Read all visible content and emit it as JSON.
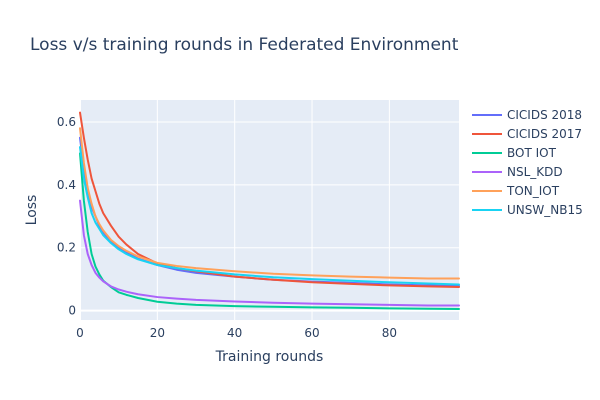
{
  "chart_data": {
    "type": "line",
    "title": "Loss v/s training rounds in Federated Environment",
    "xlabel": "Training rounds",
    "ylabel": "Loss",
    "xlim": [
      0,
      98
    ],
    "ylim": [
      -0.03,
      0.67
    ],
    "x_ticks": [
      0,
      20,
      40,
      60,
      80
    ],
    "y_ticks": [
      0,
      0.2,
      0.4,
      0.6
    ],
    "x_tick_labels": [
      "0",
      "20",
      "40",
      "60",
      "80"
    ],
    "y_tick_labels": [
      "0",
      "0.2",
      "0.4",
      "0.6"
    ],
    "grid": true,
    "legend_position": "right",
    "plot_background": "#e5ecf6",
    "series": [
      {
        "name": "CICIDS 2018",
        "color": "#636efa",
        "x": [
          0,
          1,
          2,
          3,
          4,
          5,
          6,
          8,
          10,
          12,
          15,
          20,
          25,
          30,
          40,
          50,
          60,
          70,
          80,
          90,
          98
        ],
        "y": [
          0.55,
          0.45,
          0.38,
          0.33,
          0.3,
          0.27,
          0.25,
          0.22,
          0.2,
          0.185,
          0.165,
          0.145,
          0.13,
          0.12,
          0.108,
          0.098,
          0.092,
          0.088,
          0.083,
          0.08,
          0.078
        ]
      },
      {
        "name": "CICIDS 2017",
        "color": "#ef553b",
        "x": [
          0,
          1,
          2,
          3,
          4,
          5,
          6,
          8,
          10,
          12,
          15,
          20,
          25,
          30,
          40,
          50,
          60,
          70,
          80,
          90,
          98
        ],
        "y": [
          0.63,
          0.55,
          0.48,
          0.42,
          0.38,
          0.34,
          0.31,
          0.27,
          0.235,
          0.21,
          0.18,
          0.15,
          0.135,
          0.125,
          0.108,
          0.098,
          0.09,
          0.085,
          0.08,
          0.077,
          0.075
        ]
      },
      {
        "name": "BOT IOT",
        "color": "#00cc96",
        "x": [
          0,
          1,
          2,
          3,
          4,
          5,
          6,
          8,
          10,
          12,
          15,
          20,
          25,
          30,
          40,
          50,
          60,
          70,
          80,
          90,
          98
        ],
        "y": [
          0.5,
          0.35,
          0.25,
          0.18,
          0.14,
          0.115,
          0.095,
          0.075,
          0.058,
          0.05,
          0.04,
          0.028,
          0.022,
          0.018,
          0.014,
          0.012,
          0.01,
          0.009,
          0.007,
          0.006,
          0.005
        ]
      },
      {
        "name": "NSL_KDD",
        "color": "#ab63fa",
        "x": [
          0,
          1,
          2,
          3,
          4,
          5,
          6,
          8,
          10,
          12,
          15,
          20,
          25,
          30,
          40,
          50,
          60,
          70,
          80,
          90,
          98
        ],
        "y": [
          0.35,
          0.24,
          0.18,
          0.145,
          0.12,
          0.105,
          0.093,
          0.077,
          0.067,
          0.06,
          0.052,
          0.043,
          0.038,
          0.034,
          0.029,
          0.025,
          0.022,
          0.02,
          0.018,
          0.016,
          0.016
        ]
      },
      {
        "name": "TON_IOT",
        "color": "#ffa15a",
        "x": [
          0,
          1,
          2,
          3,
          4,
          5,
          6,
          8,
          10,
          12,
          15,
          20,
          25,
          30,
          40,
          50,
          60,
          70,
          80,
          90,
          98
        ],
        "y": [
          0.58,
          0.47,
          0.39,
          0.34,
          0.3,
          0.275,
          0.255,
          0.225,
          0.205,
          0.19,
          0.172,
          0.152,
          0.142,
          0.135,
          0.125,
          0.117,
          0.112,
          0.108,
          0.105,
          0.102,
          0.102
        ]
      },
      {
        "name": "UNSW_NB15",
        "color": "#19d3f3",
        "x": [
          0,
          1,
          2,
          3,
          4,
          5,
          6,
          8,
          10,
          12,
          15,
          20,
          25,
          30,
          40,
          50,
          60,
          70,
          80,
          90,
          98
        ],
        "y": [
          0.52,
          0.42,
          0.36,
          0.31,
          0.28,
          0.26,
          0.24,
          0.215,
          0.195,
          0.18,
          0.163,
          0.145,
          0.135,
          0.127,
          0.115,
          0.106,
          0.1,
          0.095,
          0.09,
          0.086,
          0.083
        ]
      }
    ]
  }
}
